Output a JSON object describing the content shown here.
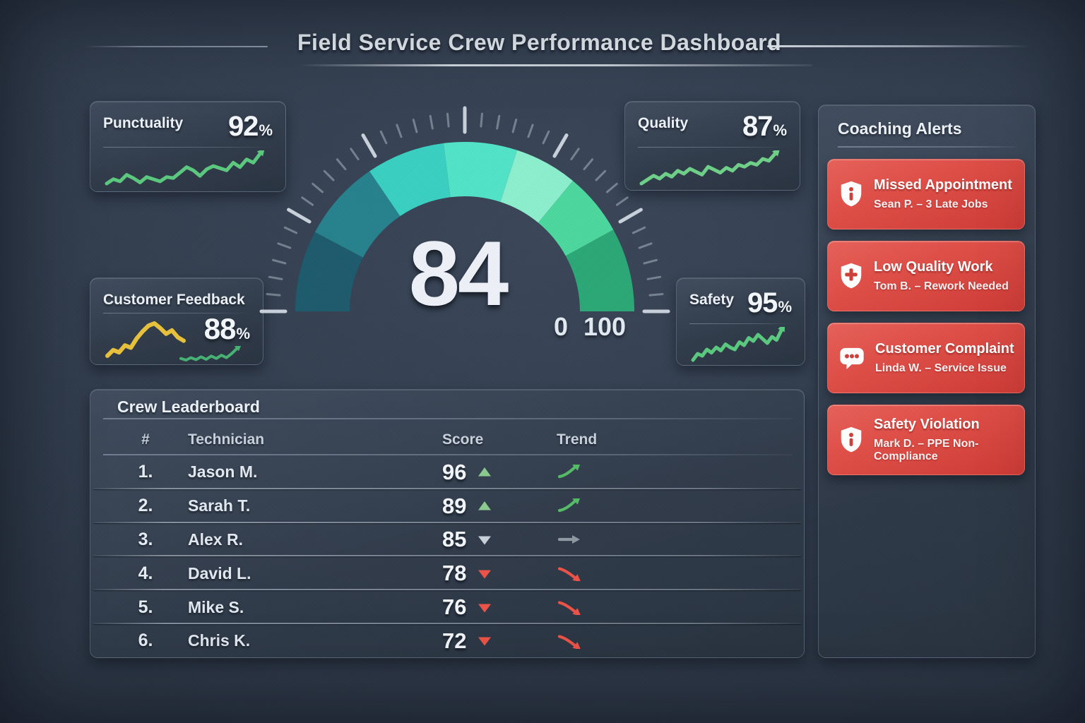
{
  "header": {
    "title": "Field Service Crew Performance Dashboard"
  },
  "kpis": {
    "punctuality": {
      "label": "Punctuality",
      "value": "92",
      "unit": "%",
      "spark": {
        "color": "#5bc97f",
        "width": 5,
        "arrow": true,
        "values": [
          18,
          26,
          22,
          34,
          28,
          20,
          30,
          26,
          22,
          30,
          28,
          38,
          48,
          42,
          32,
          44,
          50,
          46,
          42,
          56,
          48,
          62,
          56,
          72
        ]
      }
    },
    "quality": {
      "label": "Quality",
      "value": "87",
      "unit": "%",
      "spark": {
        "color": "#6fd188",
        "width": 5,
        "arrow": true,
        "values": [
          12,
          20,
          28,
          22,
          32,
          26,
          38,
          32,
          42,
          36,
          30,
          46,
          40,
          34,
          44,
          38,
          50,
          46,
          54,
          50,
          62,
          58,
          72
        ]
      }
    },
    "customer_feedback": {
      "label": "Customer Feedback",
      "value": "88",
      "unit": "%",
      "spark_primary": {
        "color": "#e9c23c",
        "width": 6,
        "arrow": false,
        "values": [
          10,
          20,
          16,
          28,
          24,
          40,
          52,
          62,
          66,
          58,
          48,
          54,
          42,
          36
        ]
      },
      "spark_secondary": {
        "color": "#47b273",
        "width": 4,
        "arrow": true,
        "values": [
          18,
          14,
          20,
          15,
          22,
          16,
          24,
          18,
          26,
          20,
          30,
          42
        ]
      }
    },
    "safety": {
      "label": "Safety",
      "value": "95",
      "unit": "%",
      "spark": {
        "color": "#5bc97f",
        "width": 5,
        "arrow": true,
        "values": [
          10,
          22,
          18,
          30,
          24,
          34,
          28,
          40,
          34,
          30,
          44,
          38,
          52,
          46,
          58,
          50,
          42,
          54,
          48,
          66
        ]
      }
    }
  },
  "gauge": {
    "value": "84",
    "min": 0,
    "max": 100,
    "min_label": "0",
    "max_label": "100",
    "segments": [
      {
        "f0": 0.0,
        "f1": 0.155,
        "color": "#1d5b6d"
      },
      {
        "f0": 0.155,
        "f1": 0.31,
        "color": "#27828e"
      },
      {
        "f0": 0.31,
        "f1": 0.46,
        "color": "#3ad0c2"
      },
      {
        "f0": 0.46,
        "f1": 0.6,
        "color": "#52e4c8"
      },
      {
        "f0": 0.6,
        "f1": 0.72,
        "color": "#8cefcd"
      },
      {
        "f0": 0.72,
        "f1": 0.84,
        "color": "#4cd89e"
      },
      {
        "f0": 0.84,
        "f1": 1.0,
        "color": "#2ca877"
      }
    ],
    "tick_color": "#d6dee8"
  },
  "leaderboard": {
    "title": "Crew Leaderboard",
    "columns": [
      "#",
      "Technician",
      "Score",
      "Trend"
    ],
    "colors": {
      "up": "#8ccb90",
      "down": "#ee5347",
      "neutral": "#c9d1da",
      "trend_up": "#54bd68",
      "trend_flat": "#8f99a4",
      "trend_down": "#ee5347"
    },
    "rows": [
      {
        "rank": "1.",
        "name": "Jason M.",
        "score": "96",
        "delta": "up",
        "trend": "up"
      },
      {
        "rank": "2.",
        "name": "Sarah T.",
        "score": "89",
        "delta": "up",
        "trend": "up"
      },
      {
        "rank": "3.",
        "name": "Alex R.",
        "score": "85",
        "delta": "neutral",
        "trend": "flat"
      },
      {
        "rank": "4.",
        "name": "David L.",
        "score": "78",
        "delta": "down",
        "trend": "down"
      },
      {
        "rank": "5.",
        "name": "Mike S.",
        "score": "76",
        "delta": "down",
        "trend": "down"
      },
      {
        "rank": "6.",
        "name": "Chris K.",
        "score": "72",
        "delta": "down",
        "trend": "down"
      }
    ]
  },
  "alerts": {
    "title": "Coaching Alerts",
    "icon_accent": "#cf4039",
    "items": [
      {
        "icon": "shield-info-icon",
        "title": "Missed Appointment",
        "detail": "Sean P. – 3 Late Jobs"
      },
      {
        "icon": "shield-cross-icon",
        "title": "Low Quality Work",
        "detail": "Tom B. – Rework Needed"
      },
      {
        "icon": "chat-bubble-icon",
        "title": "Customer Complaint",
        "detail": "Linda W. – Service Issue"
      },
      {
        "icon": "shield-info-icon",
        "title": "Safety Violation",
        "detail": "Mark D. – PPE Non-Compliance"
      }
    ]
  },
  "chart_data": [
    {
      "type": "gauge",
      "title": "Overall crew performance score",
      "value": 84,
      "min": 0,
      "max": 100,
      "arc_colors": [
        "#1d5b6d",
        "#27828e",
        "#3ad0c2",
        "#52e4c8",
        "#8cefcd",
        "#4cd89e",
        "#2ca877"
      ]
    },
    {
      "type": "line",
      "title": "Punctuality trend (92%)",
      "series": [
        {
          "name": "Punctuality",
          "values": [
            18,
            26,
            22,
            34,
            28,
            20,
            30,
            26,
            22,
            30,
            28,
            38,
            48,
            42,
            32,
            44,
            50,
            46,
            42,
            56,
            48,
            62,
            56,
            72
          ]
        }
      ],
      "note": "unlabeled sparkline, values estimated from shape"
    },
    {
      "type": "line",
      "title": "Quality trend (87%)",
      "series": [
        {
          "name": "Quality",
          "values": [
            12,
            20,
            28,
            22,
            32,
            26,
            38,
            32,
            42,
            36,
            30,
            46,
            40,
            34,
            44,
            38,
            50,
            46,
            54,
            50,
            62,
            58,
            72
          ]
        }
      ],
      "note": "unlabeled sparkline, values estimated from shape"
    },
    {
      "type": "line",
      "title": "Customer Feedback trend (88%)",
      "series": [
        {
          "name": "Feedback (yellow)",
          "values": [
            10,
            20,
            16,
            28,
            24,
            40,
            52,
            62,
            66,
            58,
            48,
            54,
            42,
            36
          ]
        },
        {
          "name": "Feedback recent (green)",
          "values": [
            18,
            14,
            20,
            15,
            22,
            16,
            24,
            18,
            26,
            20,
            30,
            42
          ]
        }
      ],
      "note": "unlabeled sparklines, values estimated from shape"
    },
    {
      "type": "line",
      "title": "Safety trend (95%)",
      "series": [
        {
          "name": "Safety",
          "values": [
            10,
            22,
            18,
            30,
            24,
            34,
            28,
            40,
            34,
            30,
            44,
            38,
            52,
            46,
            58,
            50,
            42,
            54,
            48,
            66
          ]
        }
      ],
      "note": "unlabeled sparkline, values estimated from shape"
    },
    {
      "type": "table",
      "title": "Crew Leaderboard",
      "columns": [
        "#",
        "Technician",
        "Score",
        "Trend"
      ],
      "rows": [
        [
          "1.",
          "Jason M.",
          96,
          "up"
        ],
        [
          "2.",
          "Sarah T.",
          89,
          "up"
        ],
        [
          "3.",
          "Alex R.",
          85,
          "flat"
        ],
        [
          "4.",
          "David L.",
          78,
          "down"
        ],
        [
          "5.",
          "Mike S.",
          76,
          "down"
        ],
        [
          "6.",
          "Chris K.",
          72,
          "down"
        ]
      ]
    }
  ]
}
